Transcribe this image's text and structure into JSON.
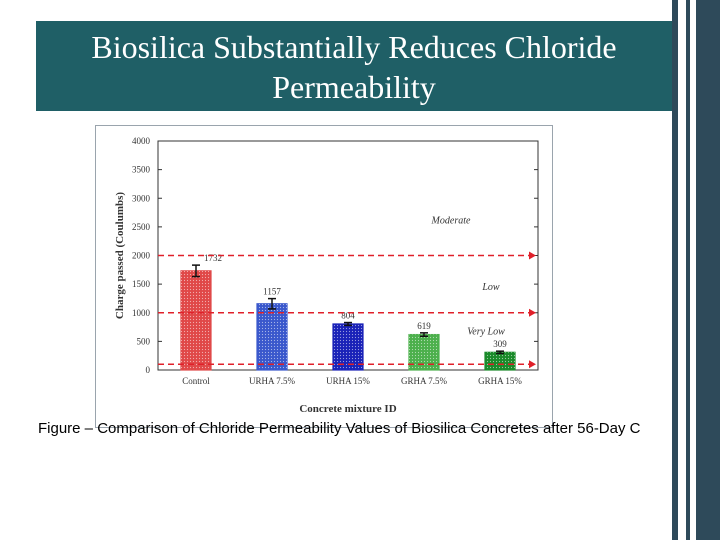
{
  "slide": {
    "title_line1": "Biosilica Substantially Reduces Chloride",
    "title_line2": "Permeability",
    "caption": "Figure – Comparison of Chloride Permeability Values of Biosilica Concretes after 56-Day C",
    "colors": {
      "title_bg": "#1f5f66",
      "deco_dark": "#2e4a5a"
    }
  },
  "chart_data": {
    "type": "bar",
    "xlabel": "Concrete mixture ID",
    "ylabel": "Charge passed (Coulumbs)",
    "ylim": [
      0,
      4000
    ],
    "yticks": [
      "0",
      "500",
      "1000",
      "1500",
      "2000",
      "2500",
      "3000",
      "3500",
      "4000"
    ],
    "categories": [
      "Control",
      "URHA 7.5%",
      "URHA 15%",
      "GRHA 7.5%",
      "GRHA 15%"
    ],
    "values": [
      1732,
      1157,
      804,
      619,
      309
    ],
    "value_labels": [
      "1732",
      "1157",
      "804",
      "619",
      "309"
    ],
    "error": [
      100,
      90,
      25,
      30,
      20
    ],
    "bar_colors": [
      "#e04848",
      "#3a58cc",
      "#1a22b8",
      "#4cb04c",
      "#1a8a2a"
    ],
    "thresholds": [
      {
        "value": 2000,
        "label": "Moderate"
      },
      {
        "value": 1000,
        "label": "Low"
      },
      {
        "value": 100,
        "label": "Very Low"
      }
    ],
    "threshold_color": "#e0202a",
    "grid": false
  }
}
